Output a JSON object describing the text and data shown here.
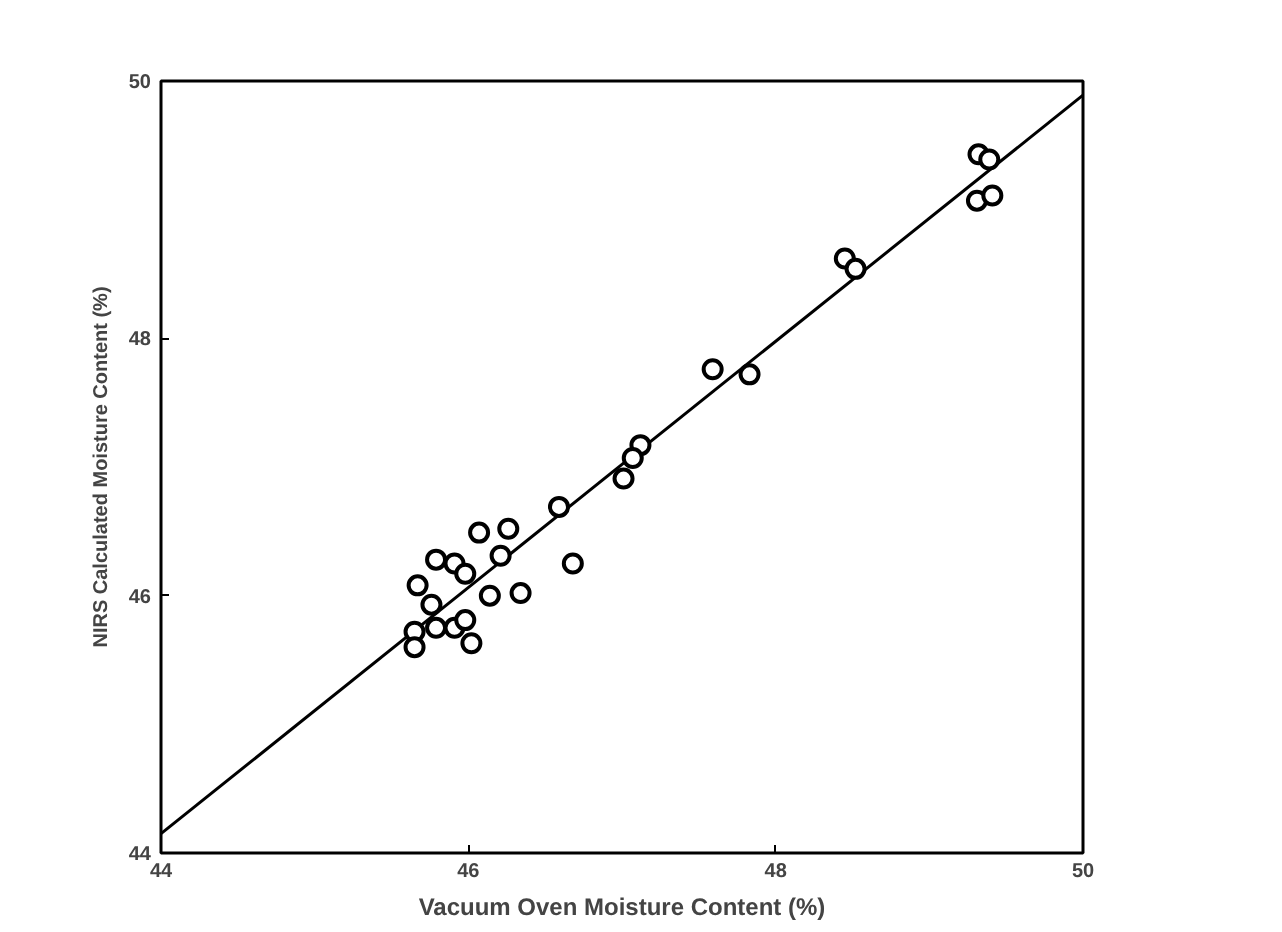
{
  "chart_data": {
    "type": "scatter",
    "xlabel": "Vacuum Oven Moisture Content (%)",
    "ylabel": "NIRS Calculated Moisture Content (%)",
    "xlim": [
      44,
      50
    ],
    "ylim": [
      44,
      50
    ],
    "xticks": [
      44,
      46,
      48,
      50
    ],
    "yticks": [
      44,
      46,
      48,
      50
    ],
    "grid": false,
    "series": [
      {
        "marker": "circle",
        "color": "#000000",
        "x": [
          49.32,
          49.39,
          49.31,
          49.41,
          48.45,
          48.52,
          47.59,
          47.83,
          47.12,
          47.07,
          47.01,
          46.59,
          46.68,
          46.07,
          46.26,
          46.21,
          45.79,
          45.91,
          45.98,
          45.67,
          45.76,
          46.14,
          46.34,
          45.65,
          45.65,
          45.79,
          45.91,
          45.98,
          46.02
        ],
        "values": [
          49.43,
          49.39,
          49.07,
          49.11,
          48.62,
          48.54,
          47.76,
          47.72,
          47.17,
          47.07,
          46.91,
          46.69,
          46.25,
          46.49,
          46.52,
          46.31,
          46.28,
          46.25,
          46.17,
          46.08,
          45.93,
          46.0,
          46.02,
          45.72,
          45.6,
          45.75,
          45.75,
          45.81,
          45.63
        ]
      },
      {
        "type": "line",
        "color": "#000000",
        "x": [
          44,
          50
        ],
        "values": [
          44.15,
          49.89
        ]
      }
    ]
  }
}
